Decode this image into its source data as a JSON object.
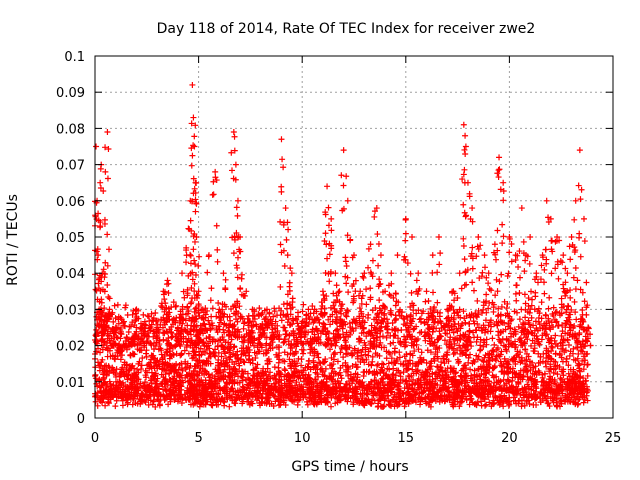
{
  "chart_data": {
    "type": "scatter",
    "title": "Day 118 of 2014, Rate Of TEC Index for receiver zwe2",
    "xlabel": "GPS time / hours",
    "ylabel": "ROTI / TECUs",
    "xlim": [
      0,
      25
    ],
    "ylim": [
      0,
      0.1
    ],
    "x_ticks": [
      "0",
      "5",
      "10",
      "15",
      "20",
      "25"
    ],
    "y_ticks": [
      "0",
      "0.01",
      "0.02",
      "0.03",
      "0.04",
      "0.05",
      "0.06",
      "0.07",
      "0.08",
      "0.09",
      "0.1"
    ],
    "grid": true,
    "marker": "+",
    "marker_color": "#ff0000",
    "series": [
      {
        "name": "",
        "x": [
          0.05,
          0.1,
          0.15,
          0.2,
          0.25,
          0.3,
          0.35,
          0.4,
          0.5,
          0.6,
          0.7,
          0.8,
          1.0,
          1.2,
          1.5,
          1.8,
          2.0,
          2.3,
          2.6,
          3.0,
          3.3,
          3.5,
          3.8,
          4.0,
          4.2,
          4.4,
          4.6,
          4.7,
          4.75,
          4.8,
          4.85,
          4.9,
          5.0,
          5.2,
          5.5,
          5.8,
          6.0,
          6.2,
          6.5,
          6.7,
          6.8,
          6.9,
          7.0,
          7.3,
          7.6,
          8.0,
          8.3,
          8.6,
          9.0,
          9.2,
          9.3,
          9.5,
          9.8,
          10.0,
          10.3,
          10.6,
          11.0,
          11.2,
          11.4,
          11.6,
          11.8,
          12.0,
          12.2,
          12.5,
          12.8,
          13.0,
          13.3,
          13.6,
          13.8,
          14.0,
          14.3,
          14.6,
          15.0,
          15.3,
          15.6,
          16.0,
          16.3,
          16.6,
          17.0,
          17.3,
          17.6,
          17.8,
          17.9,
          18.0,
          18.2,
          18.5,
          18.8,
          19.0,
          19.3,
          19.5,
          19.7,
          20.0,
          20.3,
          20.6,
          20.8,
          21.0,
          21.3,
          21.6,
          21.8,
          22.0,
          22.3,
          22.6,
          22.8,
          23.0,
          23.2,
          23.4,
          23.6,
          23.8
        ],
        "y": [
          0.075,
          0.06,
          0.045,
          0.03,
          0.065,
          0.07,
          0.04,
          0.025,
          0.068,
          0.079,
          0.03,
          0.02,
          0.025,
          0.018,
          0.02,
          0.022,
          0.03,
          0.025,
          0.028,
          0.025,
          0.035,
          0.038,
          0.032,
          0.025,
          0.04,
          0.047,
          0.06,
          0.092,
          0.083,
          0.075,
          0.065,
          0.05,
          0.035,
          0.03,
          0.045,
          0.068,
          0.03,
          0.04,
          0.028,
          0.079,
          0.07,
          0.06,
          0.05,
          0.035,
          0.03,
          0.025,
          0.03,
          0.028,
          0.077,
          0.058,
          0.045,
          0.04,
          0.028,
          0.025,
          0.03,
          0.03,
          0.035,
          0.064,
          0.055,
          0.04,
          0.035,
          0.074,
          0.06,
          0.045,
          0.035,
          0.04,
          0.048,
          0.058,
          0.045,
          0.035,
          0.04,
          0.045,
          0.055,
          0.05,
          0.04,
          0.035,
          0.045,
          0.05,
          0.03,
          0.035,
          0.04,
          0.081,
          0.075,
          0.065,
          0.058,
          0.05,
          0.045,
          0.04,
          0.048,
          0.072,
          0.065,
          0.05,
          0.045,
          0.058,
          0.045,
          0.05,
          0.04,
          0.045,
          0.06,
          0.055,
          0.05,
          0.045,
          0.04,
          0.05,
          0.06,
          0.074,
          0.055,
          0.025
        ]
      }
    ],
    "band": {
      "description_note": "",
      "x_start": 0,
      "x_end": 23.8,
      "y_min": 0.003,
      "y_max": 0.025
    }
  }
}
